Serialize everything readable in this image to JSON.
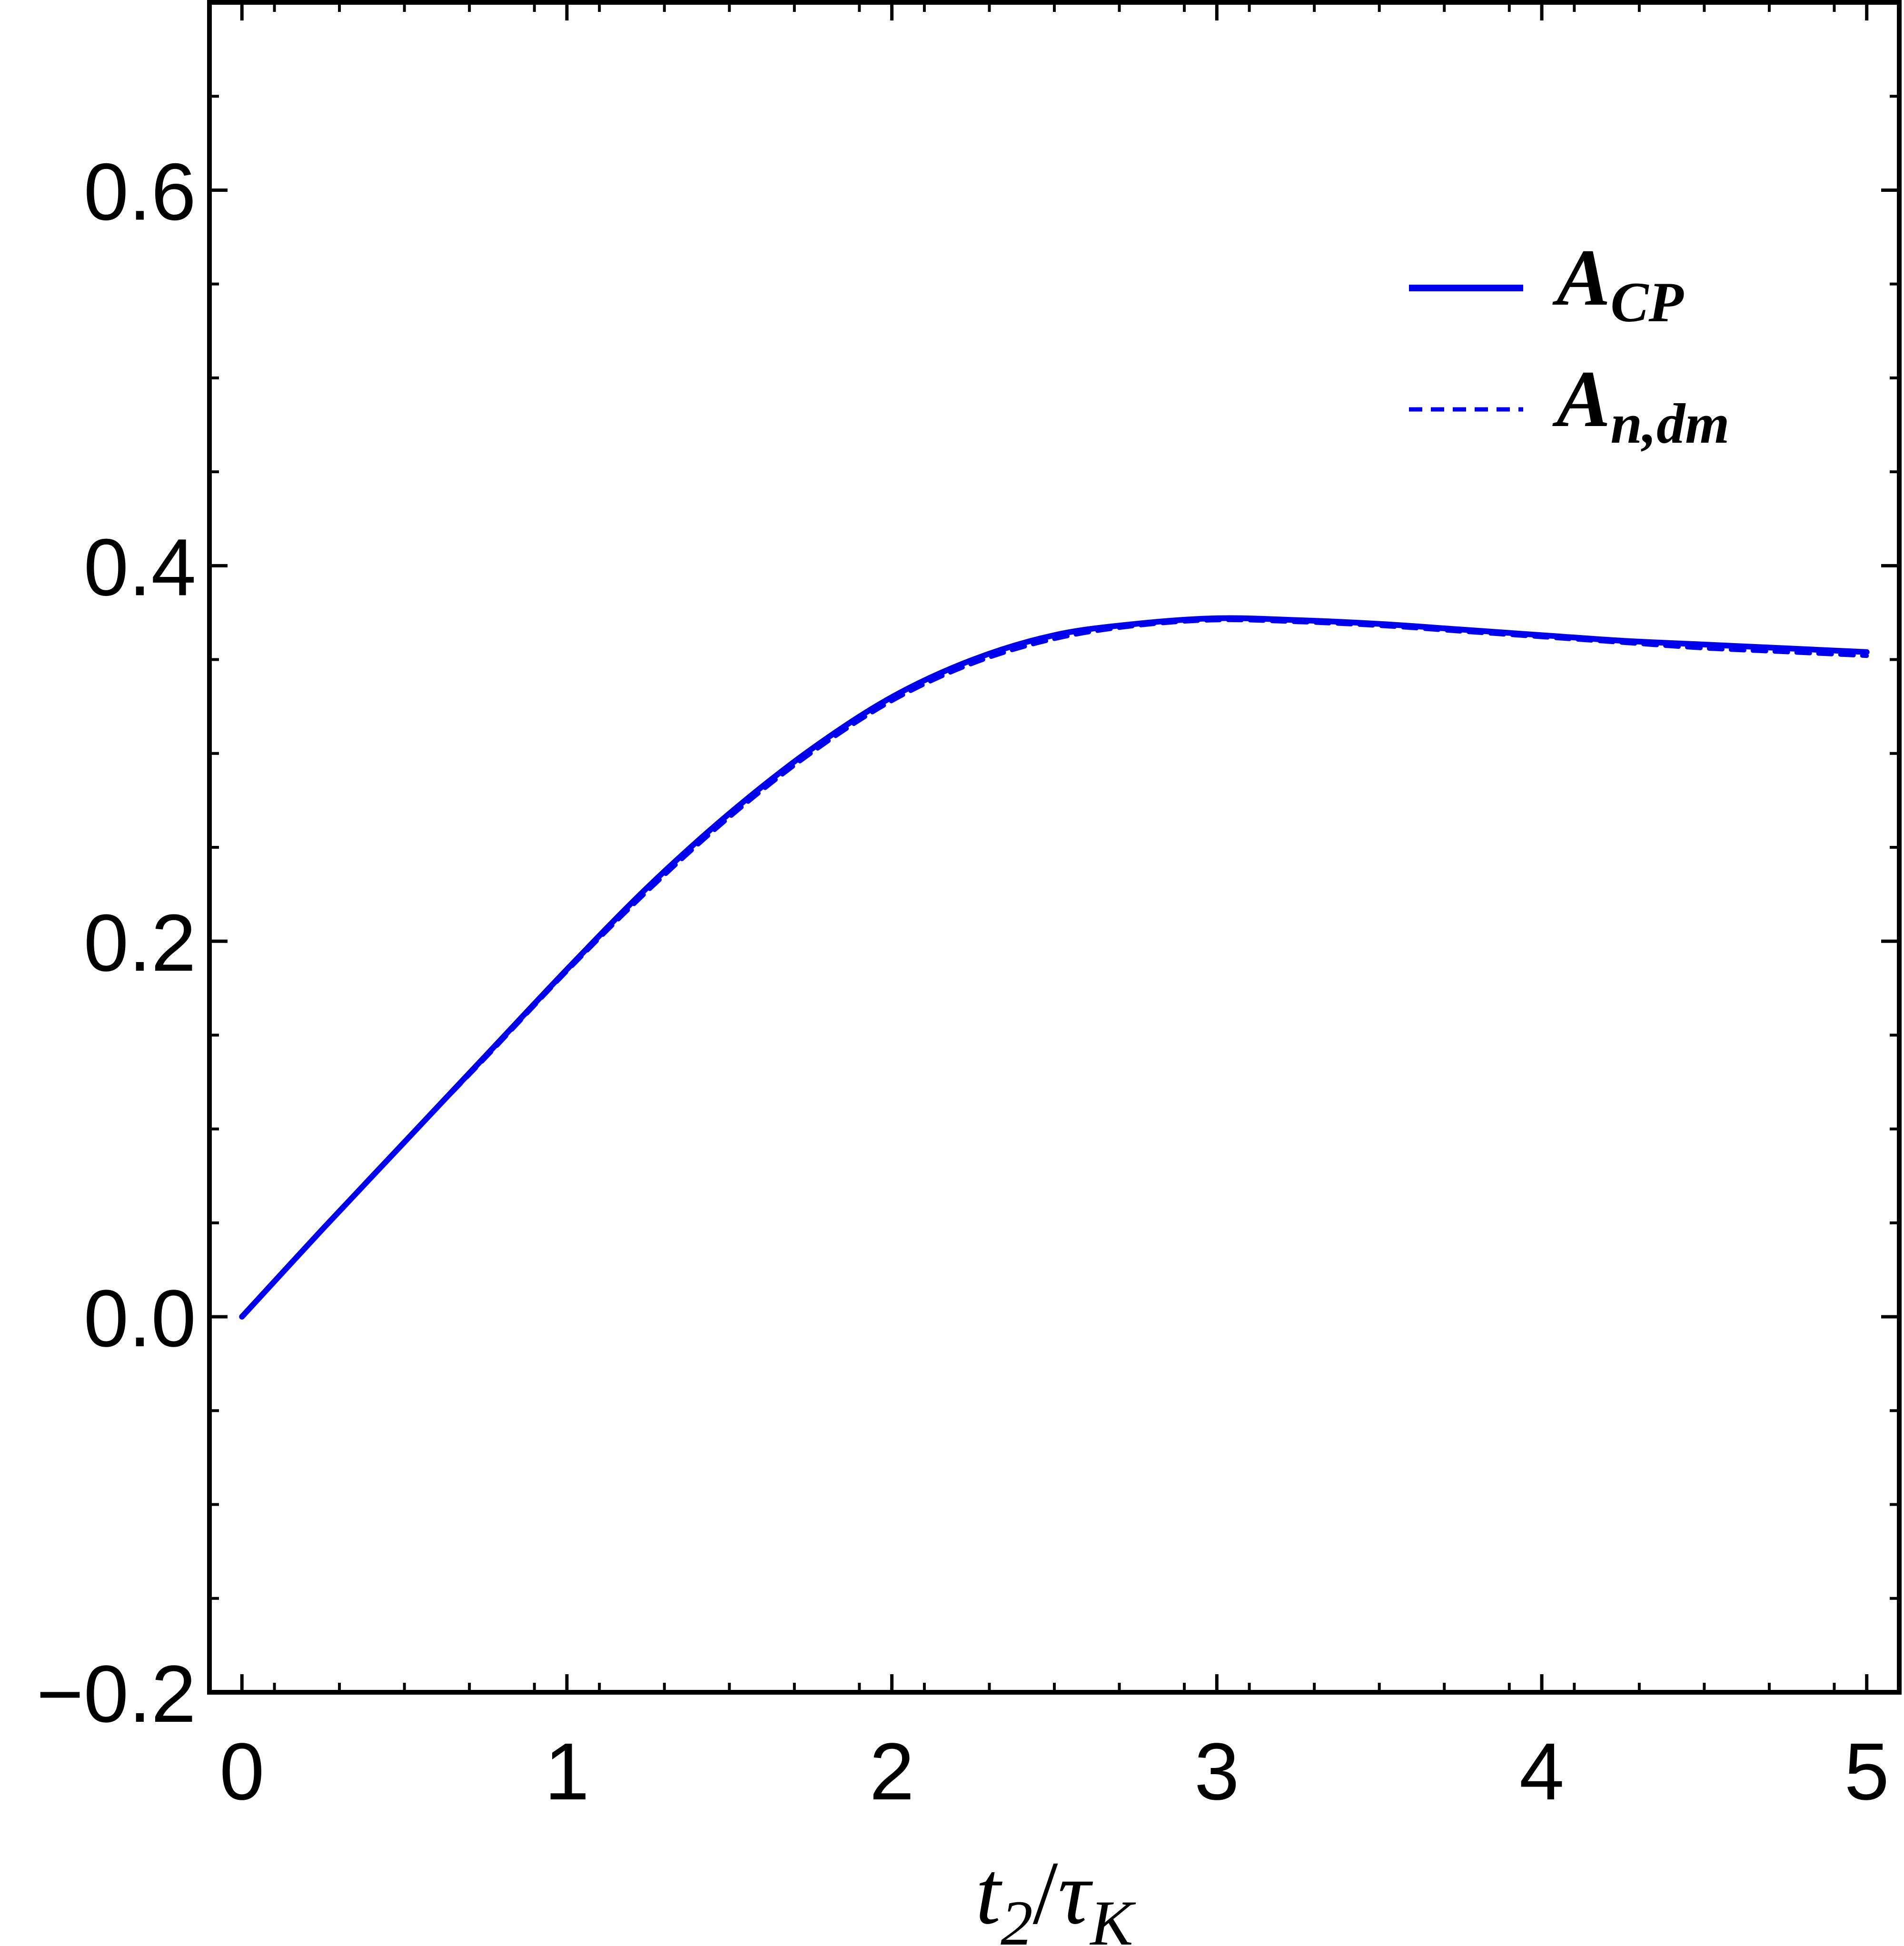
{
  "chart_data": {
    "type": "line",
    "title": "",
    "xlabel": {
      "main": "t",
      "sub": "2",
      "sep": "/",
      "main2": "τ",
      "sub2": "K"
    },
    "ylabel": "",
    "xlim": [
      -0.1,
      5.1
    ],
    "ylim": [
      -0.2,
      0.7
    ],
    "x_ticks": [
      0,
      1,
      2,
      3,
      4,
      5
    ],
    "x_tick_labels": [
      "0",
      "1",
      "2",
      "3",
      "4",
      "5"
    ],
    "y_ticks": [
      -0.2,
      0.0,
      0.2,
      0.4,
      0.6
    ],
    "y_tick_labels": [
      "−0.2",
      "0.0",
      "0.2",
      "0.4",
      "0.6"
    ],
    "legend_position": "top-right",
    "grid": false,
    "series": [
      {
        "name": {
          "main": "A",
          "sub": "CP"
        },
        "style": "solid",
        "color": "#0000ee",
        "x": [
          0,
          0.25,
          0.5,
          0.75,
          1.0,
          1.25,
          1.5,
          1.75,
          2.0,
          2.25,
          2.5,
          2.75,
          3.0,
          3.25,
          3.5,
          3.75,
          4.0,
          4.25,
          4.5,
          4.75,
          5.0
        ],
        "y": [
          0,
          0.047,
          0.093,
          0.139,
          0.185,
          0.229,
          0.268,
          0.302,
          0.33,
          0.35,
          0.363,
          0.369,
          0.372,
          0.371,
          0.369,
          0.366,
          0.363,
          0.36,
          0.358,
          0.356,
          0.354
        ]
      },
      {
        "name": {
          "main": "A",
          "sub_italic": "n",
          "sub": ",dm"
        },
        "style": "dashed",
        "color": "#0000ee",
        "x": [
          0,
          0.25,
          0.5,
          0.75,
          1.0,
          1.25,
          1.5,
          1.75,
          2.0,
          2.25,
          2.5,
          2.75,
          3.0,
          3.25,
          3.5,
          3.75,
          4.0,
          4.25,
          4.5,
          4.75,
          5.0
        ],
        "y": [
          0,
          0.047,
          0.093,
          0.138,
          0.184,
          0.227,
          0.266,
          0.3,
          0.328,
          0.348,
          0.361,
          0.368,
          0.371,
          0.37,
          0.368,
          0.365,
          0.362,
          0.359,
          0.356,
          0.354,
          0.352
        ]
      }
    ]
  }
}
